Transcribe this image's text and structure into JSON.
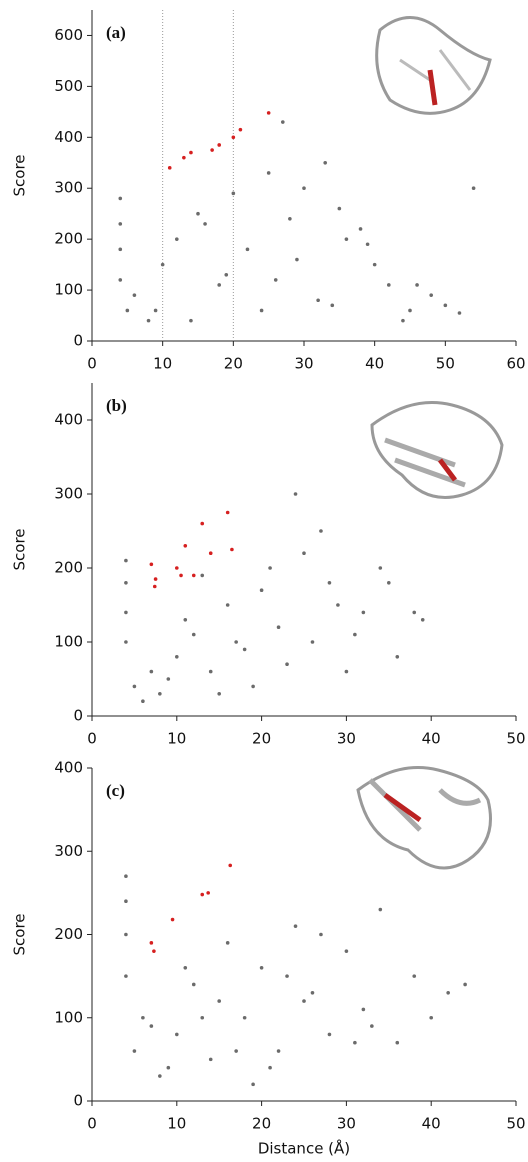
{
  "chart_data": [
    {
      "type": "scatter",
      "label": "(a)",
      "y_label": "Score",
      "xlim": [
        0,
        60
      ],
      "xticks": [
        0,
        10,
        20,
        30,
        40,
        50,
        60
      ],
      "ylim": [
        0,
        650
      ],
      "yticks": [
        0,
        100,
        200,
        300,
        400,
        500,
        600
      ],
      "vlines": [
        10,
        20
      ],
      "series": [
        {
          "color": "#6b6b6b",
          "x": [
            4,
            4,
            4,
            4,
            5,
            6,
            8,
            10,
            12,
            15,
            18,
            20,
            22,
            25,
            28,
            30,
            32,
            35,
            38,
            40,
            42,
            45,
            48,
            50,
            52,
            54,
            14,
            24,
            34,
            44,
            9,
            19,
            29,
            39,
            16,
            26,
            36,
            46,
            33,
            27
          ],
          "values": [
            120,
            180,
            230,
            280,
            60,
            90,
            40,
            150,
            200,
            250,
            110,
            290,
            180,
            330,
            240,
            300,
            80,
            260,
            220,
            150,
            110,
            60,
            90,
            70,
            55,
            300,
            40,
            60,
            70,
            40,
            60,
            130,
            160,
            190,
            230,
            120,
            200,
            110,
            350,
            430
          ]
        },
        {
          "color": "#d62020",
          "x": [
            11,
            13,
            14,
            17,
            18,
            20,
            21,
            25
          ],
          "values": [
            340,
            360,
            370,
            375,
            385,
            400,
            415,
            448
          ]
        }
      ]
    },
    {
      "type": "scatter",
      "label": "(b)",
      "y_label": "Score",
      "xlim": [
        0,
        50
      ],
      "xticks": [
        0,
        10,
        20,
        30,
        40,
        50
      ],
      "ylim": [
        0,
        450
      ],
      "yticks": [
        0,
        100,
        200,
        300,
        400
      ],
      "series": [
        {
          "color": "#6b6b6b",
          "x": [
            4,
            4,
            4,
            4,
            5,
            6,
            7,
            8,
            10,
            12,
            14,
            16,
            18,
            20,
            22,
            24,
            25,
            26,
            28,
            30,
            32,
            34,
            36,
            38,
            9,
            15,
            21,
            27,
            11,
            19,
            23,
            29,
            17,
            13,
            31,
            35,
            39
          ],
          "values": [
            100,
            140,
            180,
            210,
            40,
            20,
            60,
            30,
            80,
            110,
            60,
            150,
            90,
            170,
            120,
            300,
            220,
            100,
            180,
            60,
            140,
            200,
            80,
            140,
            50,
            30,
            200,
            250,
            130,
            40,
            70,
            150,
            100,
            190,
            110,
            180,
            130
          ]
        },
        {
          "color": "#d62020",
          "x": [
            7,
            7.4,
            7.5,
            10,
            10.5,
            11,
            12,
            13,
            14,
            16,
            16.5
          ],
          "values": [
            205,
            175,
            185,
            200,
            190,
            230,
            190,
            260,
            220,
            275,
            225
          ]
        }
      ]
    },
    {
      "type": "scatter",
      "label": "(c)",
      "y_label": "Score",
      "x_label": "Distance (Å)",
      "xlim": [
        0,
        50
      ],
      "xticks": [
        0,
        10,
        20,
        30,
        40,
        50
      ],
      "ylim": [
        0,
        400
      ],
      "yticks": [
        0,
        100,
        200,
        300,
        400
      ],
      "series": [
        {
          "color": "#6b6b6b",
          "x": [
            4,
            4,
            4,
            4,
            5,
            6,
            8,
            10,
            12,
            14,
            16,
            18,
            20,
            22,
            24,
            26,
            28,
            30,
            32,
            34,
            36,
            38,
            40,
            42,
            44,
            9,
            15,
            21,
            27,
            33,
            11,
            19,
            25,
            31,
            17,
            23,
            13,
            7
          ],
          "values": [
            150,
            200,
            240,
            270,
            60,
            100,
            30,
            80,
            140,
            50,
            190,
            100,
            160,
            60,
            210,
            130,
            80,
            180,
            110,
            230,
            70,
            150,
            100,
            130,
            140,
            40,
            120,
            40,
            200,
            90,
            160,
            20,
            120,
            70,
            60,
            150,
            100,
            90
          ]
        },
        {
          "color": "#d62020",
          "x": [
            7,
            7.3,
            9.5,
            13,
            13.7,
            16.3
          ],
          "values": [
            190,
            180,
            218,
            248,
            250,
            283
          ]
        }
      ]
    }
  ]
}
